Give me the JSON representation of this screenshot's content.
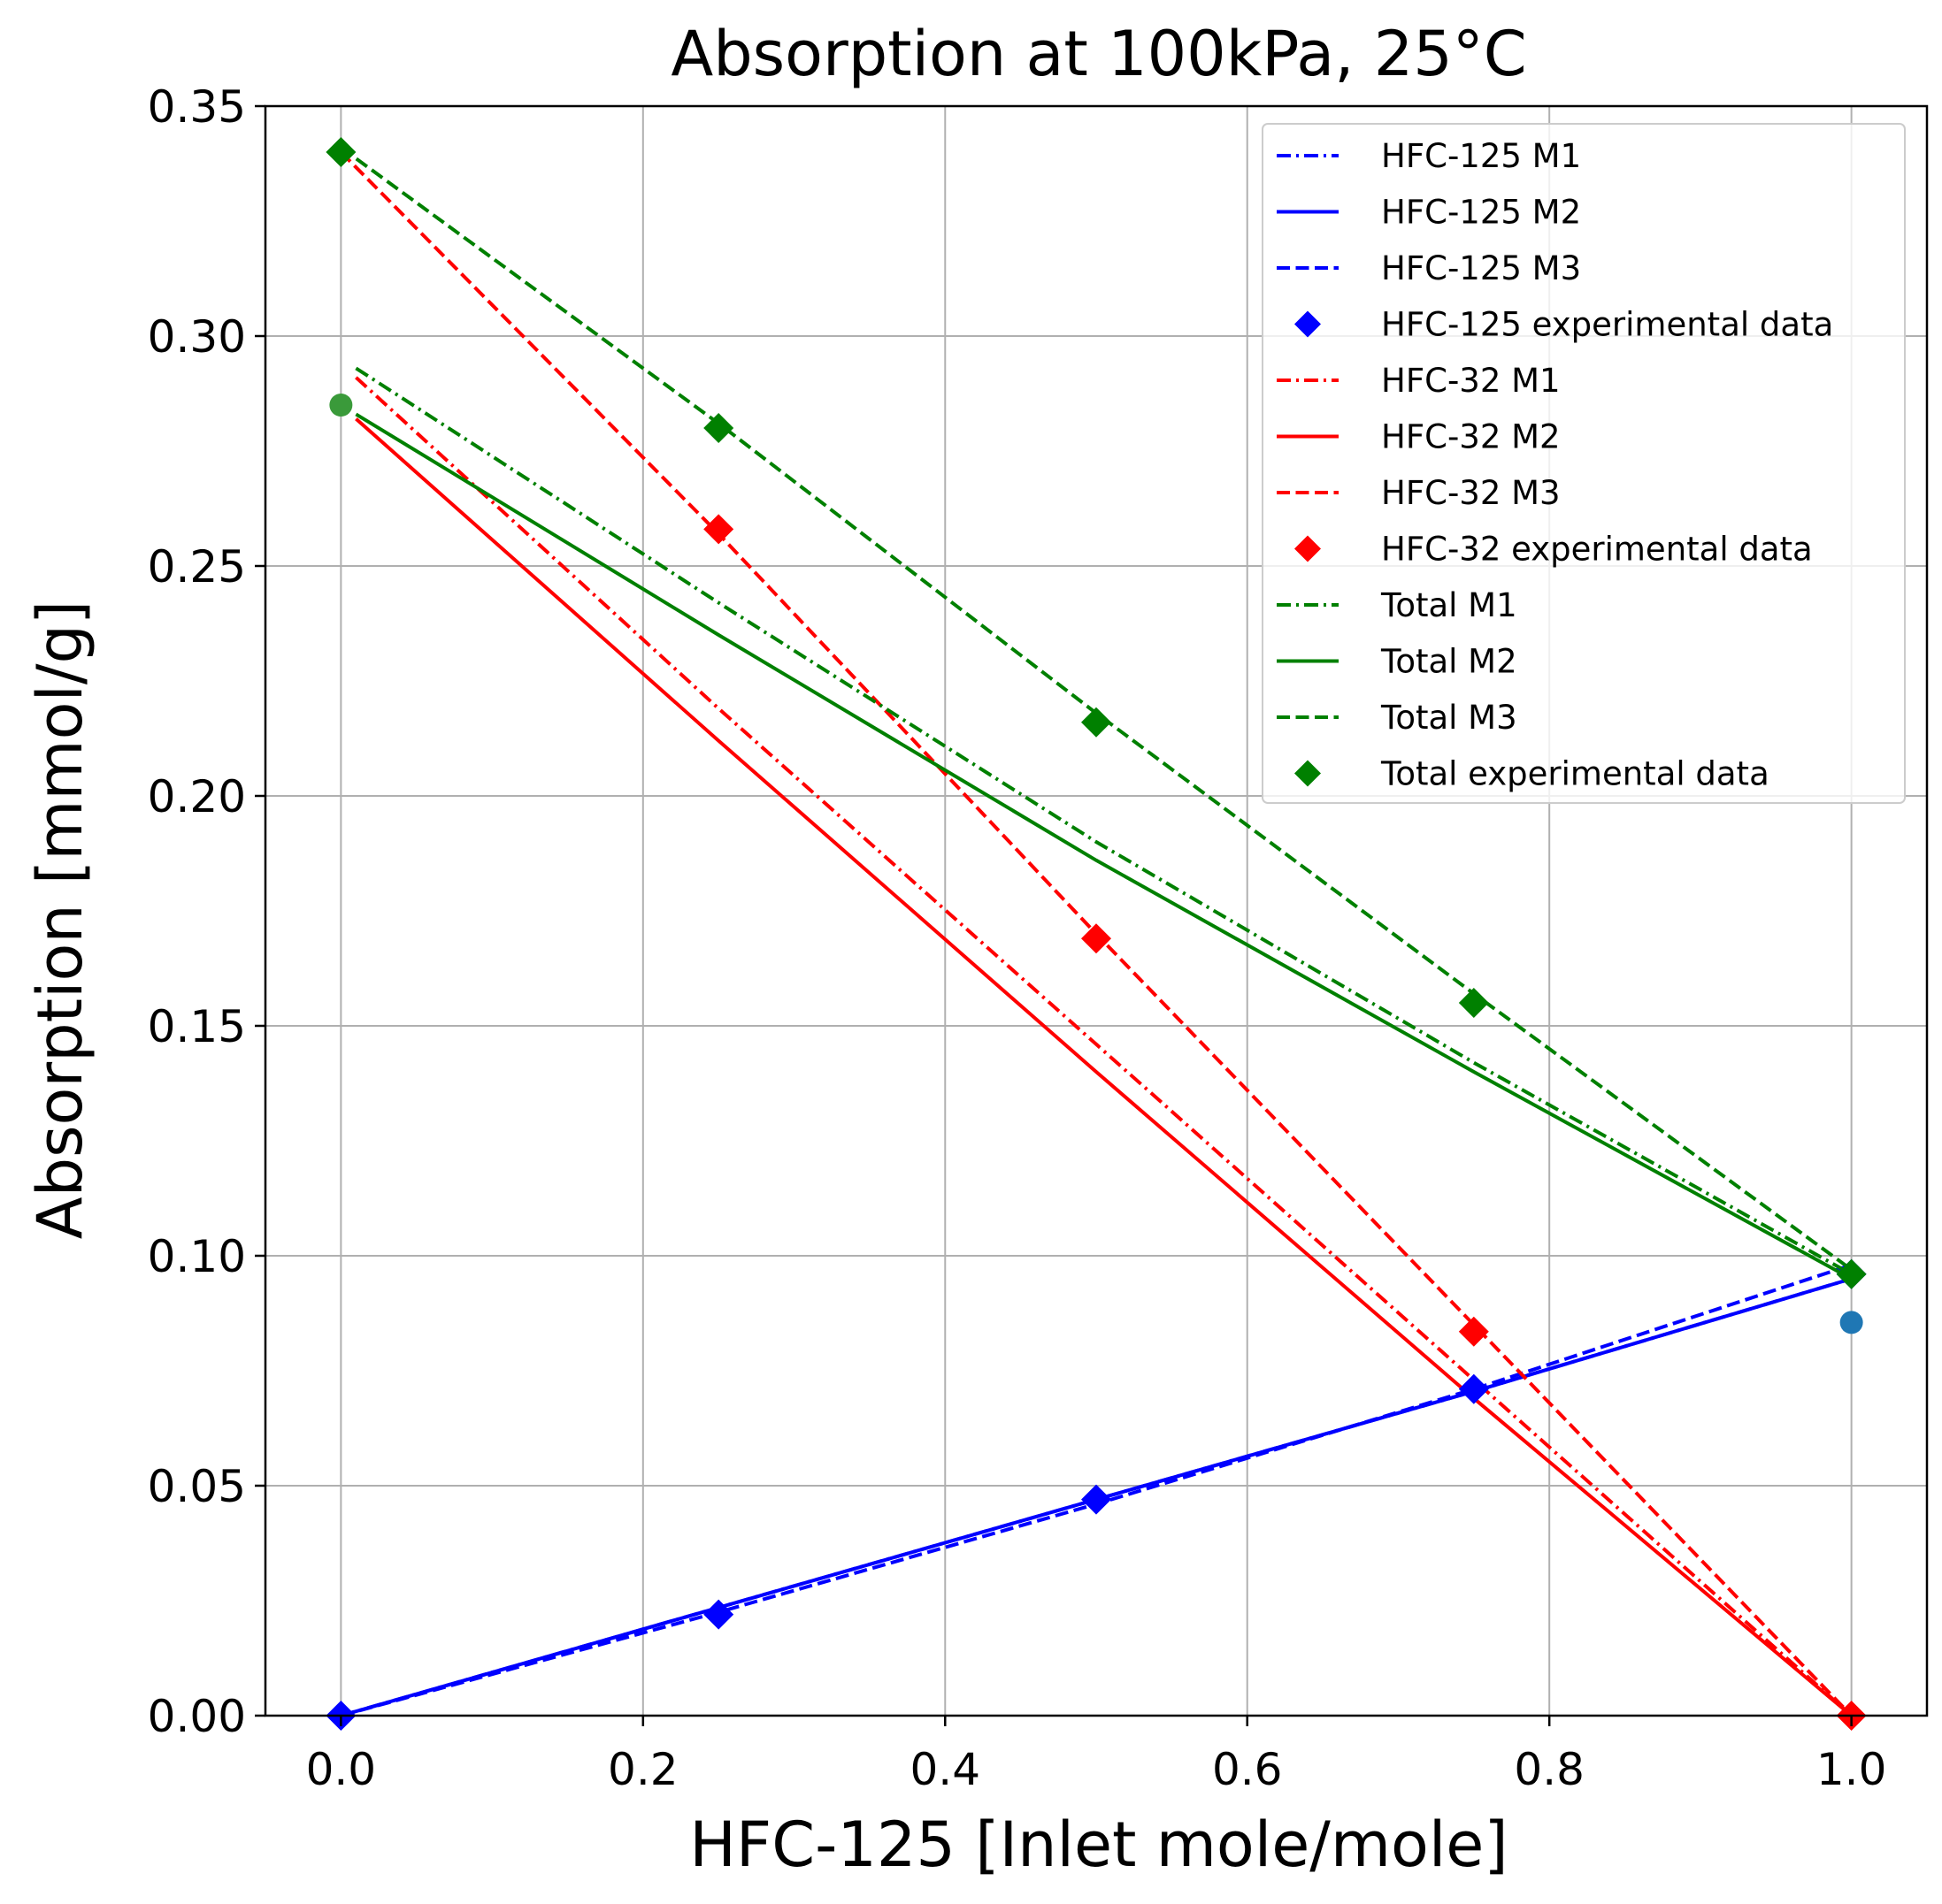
{
  "chart_data": {
    "type": "line",
    "title": "Absorption at 100kPa, 25°C",
    "xlabel": "HFC-125 [Inlet mole/mole]",
    "ylabel": "Absorption [mmol/g]",
    "xlim": [
      -0.05,
      1.05
    ],
    "ylim": [
      0,
      0.35
    ],
    "xticks": [
      0.0,
      0.2,
      0.4,
      0.6,
      0.8,
      1.0
    ],
    "xtick_labels": [
      "0.0",
      "0.2",
      "0.4",
      "0.6",
      "0.8",
      "1.0"
    ],
    "yticks": [
      0.0,
      0.05,
      0.1,
      0.15,
      0.2,
      0.25,
      0.3,
      0.35
    ],
    "ytick_labels": [
      "0.00",
      "0.05",
      "0.10",
      "0.15",
      "0.20",
      "0.25",
      "0.30",
      "0.35"
    ],
    "grid": true,
    "legend_position": "top-right",
    "colors": {
      "hfc125": "#0000ff",
      "hfc32": "#ff0000",
      "total": "#008000",
      "pure_32_point": "#3a9a3a",
      "pure_125_point": "#1f77b4"
    },
    "series": [
      {
        "name": "HFC-125 M1",
        "kind": "line",
        "style": "dashdot",
        "color": "#0000ff",
        "x": [
          0.0,
          0.25,
          0.5,
          0.75,
          1.0
        ],
        "y": [
          0.0,
          0.0235,
          0.047,
          0.0705,
          0.095
        ]
      },
      {
        "name": "HFC-125 M2",
        "kind": "line",
        "style": "solid",
        "color": "#0000ff",
        "x": [
          0.0,
          0.25,
          0.5,
          0.75,
          1.0
        ],
        "y": [
          0.0,
          0.0235,
          0.047,
          0.0705,
          0.095
        ]
      },
      {
        "name": "HFC-125 M3",
        "kind": "line",
        "style": "dashed",
        "color": "#0000ff",
        "x": [
          0.0,
          0.25,
          0.5,
          0.75,
          1.0
        ],
        "y": [
          0.0,
          0.0225,
          0.046,
          0.071,
          0.098
        ]
      },
      {
        "name": "HFC-125 experimental data",
        "kind": "marker",
        "color": "#0000ff",
        "x": [
          0.0,
          0.25,
          0.5,
          0.75,
          1.0
        ],
        "y": [
          0.0,
          0.022,
          0.047,
          0.071,
          0.096
        ]
      },
      {
        "name": "HFC-32 M1",
        "kind": "line",
        "style": "dashdot",
        "color": "#ff0000",
        "x": [
          0.01,
          0.25,
          0.5,
          0.75,
          1.0
        ],
        "y": [
          0.291,
          0.219,
          0.146,
          0.073,
          0.0
        ]
      },
      {
        "name": "HFC-32 M2",
        "kind": "line",
        "style": "solid",
        "color": "#ff0000",
        "x": [
          0.01,
          0.25,
          0.5,
          0.75,
          1.0
        ],
        "y": [
          0.282,
          0.212,
          0.14,
          0.069,
          0.0
        ]
      },
      {
        "name": "HFC-32 M3",
        "kind": "line",
        "style": "dashed",
        "color": "#ff0000",
        "x": [
          0.0,
          0.25,
          0.5,
          0.75,
          1.0
        ],
        "y": [
          0.34,
          0.257,
          0.17,
          0.085,
          0.0
        ]
      },
      {
        "name": "HFC-32 experimental data",
        "kind": "marker",
        "color": "#ff0000",
        "x": [
          0.25,
          0.5,
          0.75,
          1.0
        ],
        "y": [
          0.258,
          0.169,
          0.0835,
          0.0
        ]
      },
      {
        "name": "Total M1",
        "kind": "line",
        "style": "dashdot",
        "color": "#008000",
        "x": [
          0.01,
          0.25,
          0.5,
          0.75,
          1.0
        ],
        "y": [
          0.293,
          0.242,
          0.19,
          0.142,
          0.096
        ]
      },
      {
        "name": "Total M2",
        "kind": "line",
        "style": "solid",
        "color": "#008000",
        "x": [
          0.01,
          0.25,
          0.5,
          0.75,
          1.0
        ],
        "y": [
          0.283,
          0.235,
          0.186,
          0.14,
          0.095
        ]
      },
      {
        "name": "Total M3",
        "kind": "line",
        "style": "dashed",
        "color": "#008000",
        "x": [
          0.0,
          0.25,
          0.5,
          0.75,
          1.0
        ],
        "y": [
          0.341,
          0.281,
          0.218,
          0.157,
          0.097
        ]
      },
      {
        "name": "Total experimental data",
        "kind": "marker",
        "color": "#008000",
        "x": [
          0.0,
          0.25,
          0.5,
          0.75,
          1.0
        ],
        "y": [
          0.34,
          0.28,
          0.216,
          0.155,
          0.096
        ]
      }
    ],
    "extra_points": [
      {
        "x": 0.0,
        "y": 0.285,
        "color": "#3a9a3a"
      },
      {
        "x": 1.0,
        "y": 0.0855,
        "color": "#1f77b4"
      }
    ]
  }
}
